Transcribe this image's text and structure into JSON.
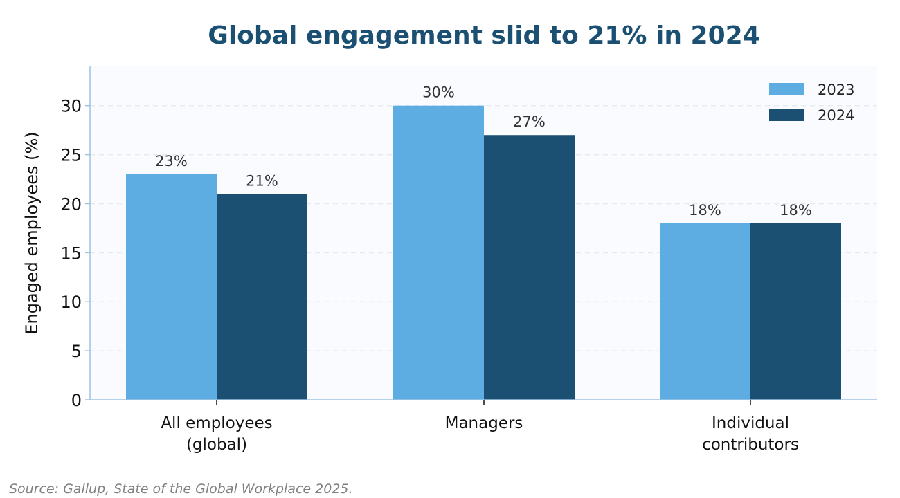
{
  "chart_data": {
    "type": "bar",
    "title": "Global engagement slid to 21% in 2024",
    "xlabel": "",
    "ylabel": "Engaged employees (%)",
    "categories": [
      [
        "All employees",
        "(global)"
      ],
      [
        "Managers"
      ],
      [
        "Individual",
        "contributors"
      ]
    ],
    "series": [
      {
        "name": "2023",
        "values": [
          23,
          30,
          18
        ],
        "labels": [
          "23%",
          "30%",
          "18%"
        ],
        "color": "#5dade2"
      },
      {
        "name": "2024",
        "values": [
          21,
          27,
          18
        ],
        "labels": [
          "21%",
          "27%",
          "18%"
        ],
        "color": "#1b5073"
      }
    ],
    "ylim": [
      0,
      34
    ],
    "yticks": [
      0,
      5,
      10,
      15,
      20,
      25,
      30
    ],
    "grid": true,
    "legend": "top-right",
    "source": "Source: Gallup, State of the Global Workplace 2025."
  }
}
